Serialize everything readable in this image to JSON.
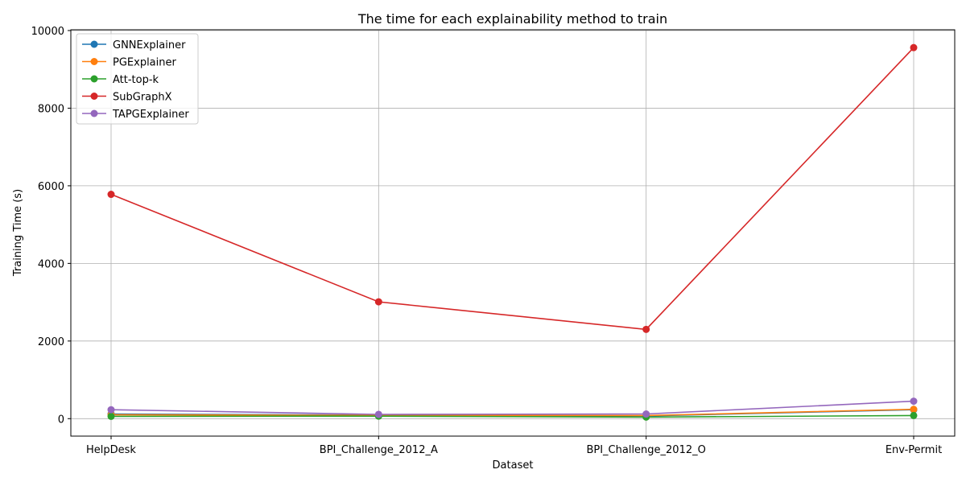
{
  "chart_data": {
    "type": "line",
    "title": "The time for each explainability method to train",
    "xlabel": "Dataset",
    "ylabel": "Training Time (s)",
    "categories": [
      "HelpDesk",
      "BPI_Challenge_2012_A",
      "BPI_Challenge_2012_O",
      "Env-Permit"
    ],
    "ylim": [
      -450,
      10020
    ],
    "yticks": [
      0,
      2000,
      4000,
      6000,
      8000,
      10000
    ],
    "grid": true,
    "legend_position": "top-left",
    "markers": true,
    "series": [
      {
        "name": "GNNExplainer",
        "color": "#1f77b4",
        "values": [
          120,
          90,
          70,
          230
        ]
      },
      {
        "name": "PGExplainer",
        "color": "#ff7f0e",
        "values": [
          100,
          85,
          80,
          240
        ]
      },
      {
        "name": "Att-top-k",
        "color": "#2ca02c",
        "values": [
          60,
          65,
          40,
          80
        ]
      },
      {
        "name": "SubGraphX",
        "color": "#d62728",
        "values": [
          5780,
          3010,
          2300,
          9560
        ]
      },
      {
        "name": "TAPGExplainer",
        "color": "#9467bd",
        "values": [
          230,
          110,
          120,
          450
        ]
      }
    ]
  }
}
